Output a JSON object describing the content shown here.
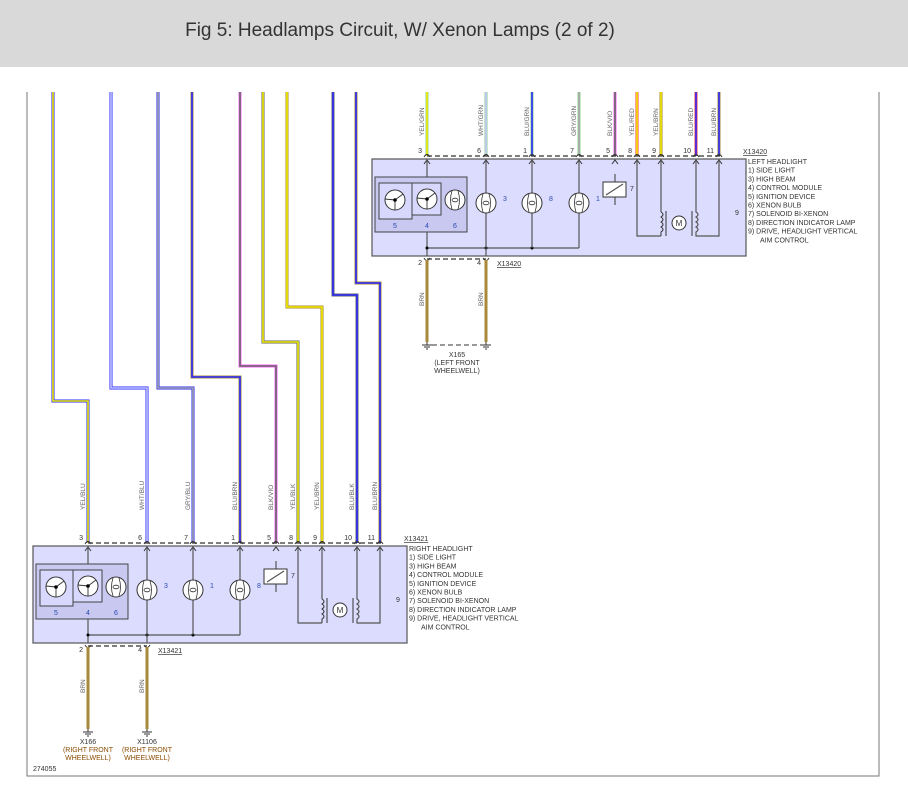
{
  "header": {
    "title": "Fig 5: Headlamps Circuit, W/ Xenon Lamps (2 of 2)"
  },
  "doc_number": "274055",
  "wire_colors": {
    "YEL": "#f2ec00",
    "GRN": "#8fd08f",
    "BLU": "#2a2aff",
    "WHT": "#c8c8ff",
    "GRY": "#a8a8a8",
    "BLK": "#666666",
    "VIO": "#ff66ff",
    "RED": "#ff4040",
    "BRN": "#a8883a"
  },
  "colors": {
    "module_fill": "#dcdcff",
    "module_stroke": "#555555",
    "inner_fill": "#c8c8f0"
  },
  "left_headlight": {
    "connector": "X13420",
    "pins": [
      {
        "pin": "3",
        "wire": "YEL/GRN"
      },
      {
        "pin": "6",
        "wire": "WHT/GRN"
      },
      {
        "pin": "1",
        "wire": "BLU/GRN"
      },
      {
        "pin": "7",
        "wire": "GRY/GRN"
      },
      {
        "pin": "5",
        "wire": "BLK/VIO"
      },
      {
        "pin": "8",
        "wire": "YEL/RED"
      },
      {
        "pin": "9",
        "wire": "YEL/BRN"
      },
      {
        "pin": "10",
        "wire": "BLU/RED"
      },
      {
        "pin": "11",
        "wire": "BLU/BRN"
      }
    ],
    "sub_labels": [
      "5",
      "4",
      "6"
    ],
    "lamp_labels": [
      "3",
      "8",
      "1"
    ],
    "solenoid_label": "7",
    "drive_label": "9",
    "legend": [
      "LEFT HEADLIGHT",
      "1) SIDE LIGHT",
      "3) HIGH BEAM",
      "4) CONTROL MODULE",
      "5) IGNITION DEVICE",
      "6) XENON BULB",
      "7) SOLENOID BI-XENON",
      "8) DIRECTION INDICATOR LAMP",
      "9) DRIVE, HEADLIGHT VERTICAL",
      "AIM CONTROL"
    ],
    "ground_connector": "X13420",
    "ground_pins": [
      {
        "pin": "2",
        "wire": "BRN"
      },
      {
        "pin": "4",
        "wire": "BRN"
      }
    ],
    "grounds": [
      {
        "lines": [
          "X165",
          "(LEFT FRONT",
          "WHEELWELL)"
        ]
      }
    ]
  },
  "right_headlight": {
    "connector": "X13421",
    "pins": [
      {
        "pin": "3",
        "wire": "YEL/BLU"
      },
      {
        "pin": "6",
        "wire": "WHT/BLU"
      },
      {
        "pin": "7",
        "wire": "GRY/BLU"
      },
      {
        "pin": "1",
        "wire": "BLU/BRN"
      },
      {
        "pin": "5",
        "wire": "BLK/VIO"
      },
      {
        "pin": "8",
        "wire": "YEL/BLK"
      },
      {
        "pin": "9",
        "wire": "YEL/BRN"
      },
      {
        "pin": "10",
        "wire": "BLU/BLK"
      },
      {
        "pin": "11",
        "wire": "BLU/BRN"
      }
    ],
    "sub_labels": [
      "5",
      "4",
      "6"
    ],
    "lamp_labels": [
      "3",
      "1",
      "8"
    ],
    "solenoid_label": "7",
    "drive_label": "9",
    "legend": [
      "RIGHT HEADLIGHT",
      "1) SIDE LIGHT",
      "3) HIGH BEAM",
      "4) CONTROL MODULE",
      "5) IGNITION DEVICE",
      "6) XENON BULB",
      "7) SOLENOID BI-XENON",
      "8) DIRECTION INDICATOR LAMP",
      "9) DRIVE, HEADLIGHT VERTICAL",
      "AIM CONTROL"
    ],
    "ground_connector": "X13421",
    "ground_pins": [
      {
        "pin": "2",
        "wire": "BRN"
      },
      {
        "pin": "4",
        "wire": "BRN"
      }
    ],
    "grounds": [
      {
        "lines": [
          "X166",
          "(RIGHT FRONT",
          "WHEELWELL)"
        ]
      },
      {
        "lines": [
          "X1106",
          "(RIGHT FRONT",
          "WHEELWELL)"
        ]
      }
    ]
  }
}
